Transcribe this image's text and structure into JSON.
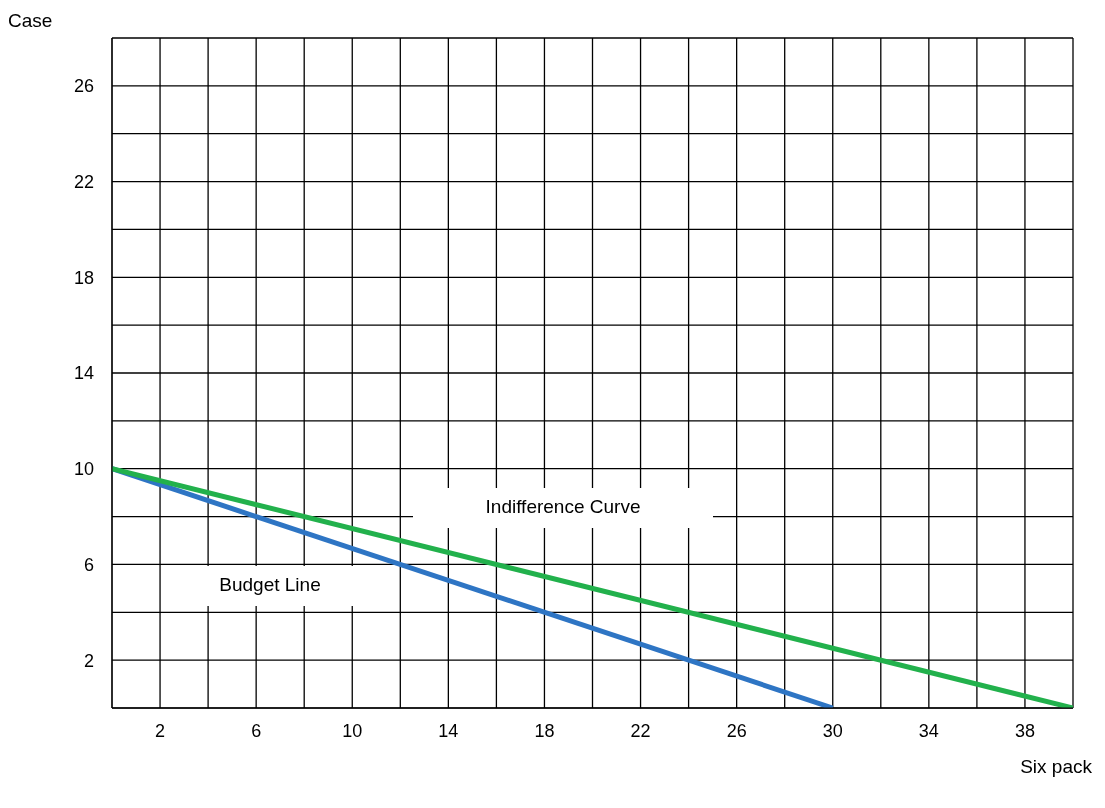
{
  "chart_data": {
    "type": "line",
    "xlabel": "Six pack",
    "ylabel": "Case",
    "xlim": [
      0,
      40
    ],
    "ylim": [
      0,
      28
    ],
    "xticks": [
      {
        "value": 0,
        "label": null
      },
      2,
      {
        "value": 4,
        "label": null
      },
      6,
      {
        "value": 8,
        "label": null
      },
      10,
      {
        "value": 12,
        "label": null
      },
      14,
      {
        "value": 16,
        "label": null
      },
      18,
      {
        "value": 20,
        "label": null
      },
      22,
      {
        "value": 24,
        "label": null
      },
      26,
      {
        "value": 28,
        "label": null
      },
      30,
      {
        "value": 32,
        "label": null
      },
      34,
      {
        "value": 36,
        "label": null
      },
      38,
      {
        "value": 40,
        "label": null
      }
    ],
    "yticks": [
      {
        "value": 0,
        "label": null
      },
      2,
      {
        "value": 4,
        "label": null
      },
      6,
      {
        "value": 8,
        "label": null
      },
      10,
      {
        "value": 12,
        "label": null
      },
      14,
      {
        "value": 16,
        "label": null
      },
      18,
      {
        "value": 20,
        "label": null
      },
      22,
      {
        "value": 24,
        "label": null
      },
      26,
      {
        "value": 28,
        "label": null
      }
    ],
    "grid": true,
    "line_style": "solid",
    "series": [
      {
        "color": "#2e75c4",
        "x": [
          0,
          30
        ],
        "values": [
          10,
          0
        ]
      },
      {
        "color": "#22b14c",
        "x": [
          0,
          40
        ],
        "values": [
          10,
          0
        ]
      }
    ],
    "annotations": [
      "Indifference Curve",
      "Budget Line"
    ]
  }
}
